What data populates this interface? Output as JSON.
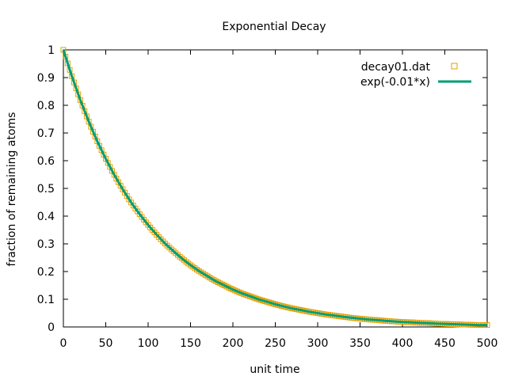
{
  "chart_data": {
    "type": "scatter",
    "title": "Exponential Decay",
    "xlabel": "unit time",
    "ylabel": "fraction of remaining atoms",
    "xlim": [
      0,
      500
    ],
    "ylim": [
      0,
      1
    ],
    "xticks": [
      "0",
      "50",
      "100",
      "150",
      "200",
      "250",
      "300",
      "350",
      "400",
      "450",
      "500"
    ],
    "yticks": [
      "0",
      "0.1",
      "0.2",
      "0.3",
      "0.4",
      "0.5",
      "0.6",
      "0.7",
      "0.8",
      "0.9",
      "1"
    ],
    "grid": false,
    "legend_position": "top-right",
    "series": [
      {
        "name": "decay01.dat",
        "kind": "points",
        "marker": "open-square",
        "color": "#e69f00",
        "x": [
          0,
          10,
          20,
          30,
          40,
          50,
          60,
          70,
          80,
          90,
          100,
          110,
          120,
          130,
          140,
          150,
          160,
          170,
          180,
          190,
          200,
          210,
          220,
          230,
          240,
          250,
          260,
          270,
          280,
          290,
          300,
          310,
          320,
          330,
          340,
          350,
          360,
          370,
          380,
          390,
          400,
          410,
          420,
          430,
          440,
          450,
          460,
          470,
          480,
          490,
          500
        ],
        "y": [
          1.0,
          0.905,
          0.819,
          0.741,
          0.67,
          0.607,
          0.549,
          0.497,
          0.449,
          0.407,
          0.368,
          0.333,
          0.301,
          0.273,
          0.247,
          0.223,
          0.202,
          0.183,
          0.165,
          0.15,
          0.135,
          0.122,
          0.111,
          0.1,
          0.091,
          0.082,
          0.074,
          0.067,
          0.061,
          0.055,
          0.05,
          0.045,
          0.041,
          0.037,
          0.033,
          0.03,
          0.027,
          0.025,
          0.022,
          0.02,
          0.018,
          0.017,
          0.015,
          0.014,
          0.012,
          0.011,
          0.01,
          0.009,
          0.008,
          0.007,
          0.007
        ]
      },
      {
        "name": "exp(-0.01*x)",
        "kind": "line",
        "color": "#009e73",
        "x": [
          0,
          10,
          20,
          30,
          40,
          50,
          60,
          70,
          80,
          90,
          100,
          110,
          120,
          130,
          140,
          150,
          160,
          170,
          180,
          190,
          200,
          210,
          220,
          230,
          240,
          250,
          260,
          270,
          280,
          290,
          300,
          310,
          320,
          330,
          340,
          350,
          360,
          370,
          380,
          390,
          400,
          410,
          420,
          430,
          440,
          450,
          460,
          470,
          480,
          490,
          500
        ],
        "y": [
          1.0,
          0.905,
          0.819,
          0.741,
          0.67,
          0.607,
          0.549,
          0.497,
          0.449,
          0.407,
          0.368,
          0.333,
          0.301,
          0.273,
          0.247,
          0.223,
          0.202,
          0.183,
          0.165,
          0.15,
          0.135,
          0.122,
          0.111,
          0.1,
          0.091,
          0.082,
          0.074,
          0.067,
          0.061,
          0.055,
          0.05,
          0.045,
          0.041,
          0.037,
          0.033,
          0.03,
          0.027,
          0.025,
          0.022,
          0.02,
          0.018,
          0.017,
          0.015,
          0.014,
          0.012,
          0.011,
          0.01,
          0.009,
          0.008,
          0.007,
          0.007
        ]
      }
    ]
  }
}
